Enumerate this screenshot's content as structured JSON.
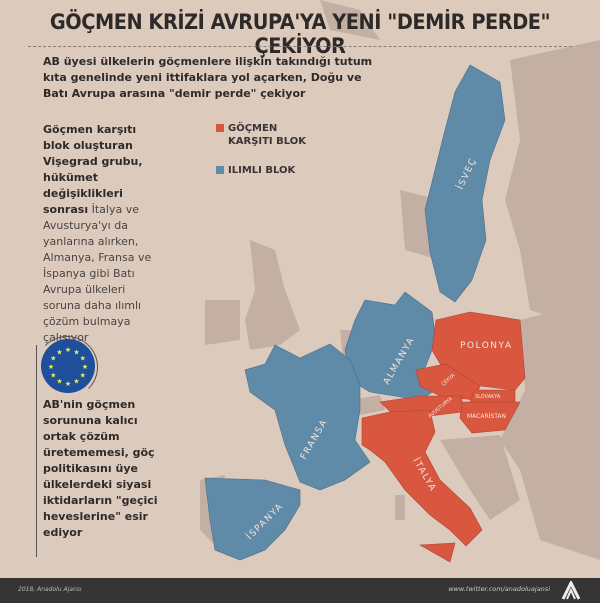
{
  "header": {
    "title": "GÖÇMEN KRİZİ AVRUPA'YA YENİ \"DEMİR PERDE\" ÇEKİYOR",
    "intro": "AB üyesi ülkelerin göçmenlere ilişkin takındığı tutum kıta genelinde yeni ittifaklara yol açarken, Doğu ve Batı Avrupa arasına \"demir perde\" çekiyor"
  },
  "left_text": {
    "bold": "Göçmen karşıtı blok oluşturan Vişegrad grubu, hükümet değişiklikleri sonrası",
    "normal": "İtalya ve Avusturya'yı da yanlarına alırken, Almanya, Fransa ve İspanya gibi Batı Avrupa ülkeleri soruna daha ılımlı çözüm bulmaya çalışıyor"
  },
  "legend": [
    {
      "label": "GÖÇMEN KARŞITI BLOK",
      "color": "#d9573f"
    },
    {
      "label": "ILIMLI BLOK",
      "color": "#5f8aa8"
    }
  ],
  "eu_text": "AB'nin göçmen sorununa kalıcı ortak çözüm üretememesi, göç politikasını üye ülkelerdeki siyasi iktidarların \"geçici heveslerine\" esir ediyor",
  "countries": {
    "anti": [
      "POLONYA",
      "ÇEKYA",
      "SLOVAKYA",
      "MACARİSTAN",
      "AVUSTURYA",
      "İTALYA"
    ],
    "moderate": [
      "İSVEÇ",
      "ALMANYA",
      "FRANSA",
      "İSPANYA"
    ]
  },
  "footer": {
    "copyright": "2018, Anadolu Ajansı",
    "twitter": "www.twitter.com/anadoluajansi",
    "logo": "AA"
  },
  "colors": {
    "background": "#dccbbd",
    "land": "#bfaba0",
    "anti": "#d9573f",
    "moderate": "#5f8aa8",
    "footer": "#363434"
  }
}
